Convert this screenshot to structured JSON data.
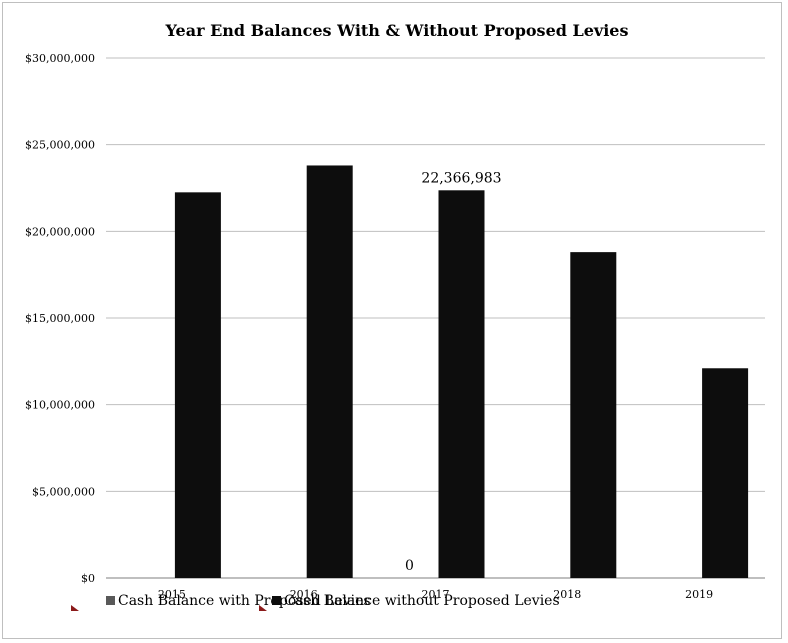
{
  "chart_data": {
    "type": "bar",
    "title": "Year End Balances With & Without Proposed Levies",
    "xlabel": "",
    "ylabel": "",
    "categories": [
      "2015",
      "2016",
      "2017",
      "2018",
      "2019"
    ],
    "series": [
      {
        "name": "Cash Balance with Proposed Levies",
        "color": "#595959",
        "values": [
          0,
          0,
          0,
          0,
          0
        ]
      },
      {
        "name": "Cash Balance without Proposed Levies",
        "color": "#0d0d0d",
        "values": [
          22250000,
          23800000,
          22366983,
          18800000,
          12100000
        ]
      }
    ],
    "data_labels": [
      {
        "series": 0,
        "index": 2,
        "text": "0"
      },
      {
        "series": 1,
        "index": 2,
        "text": "22,366,983"
      }
    ],
    "y_ticks": [
      "$0",
      "$5,000,000",
      "$10,000,000",
      "$15,000,000",
      "$20,000,000",
      "$25,000,000",
      "$30,000,000"
    ],
    "ylim": [
      0,
      30000000
    ],
    "grid": true,
    "legend_position": "bottom"
  }
}
